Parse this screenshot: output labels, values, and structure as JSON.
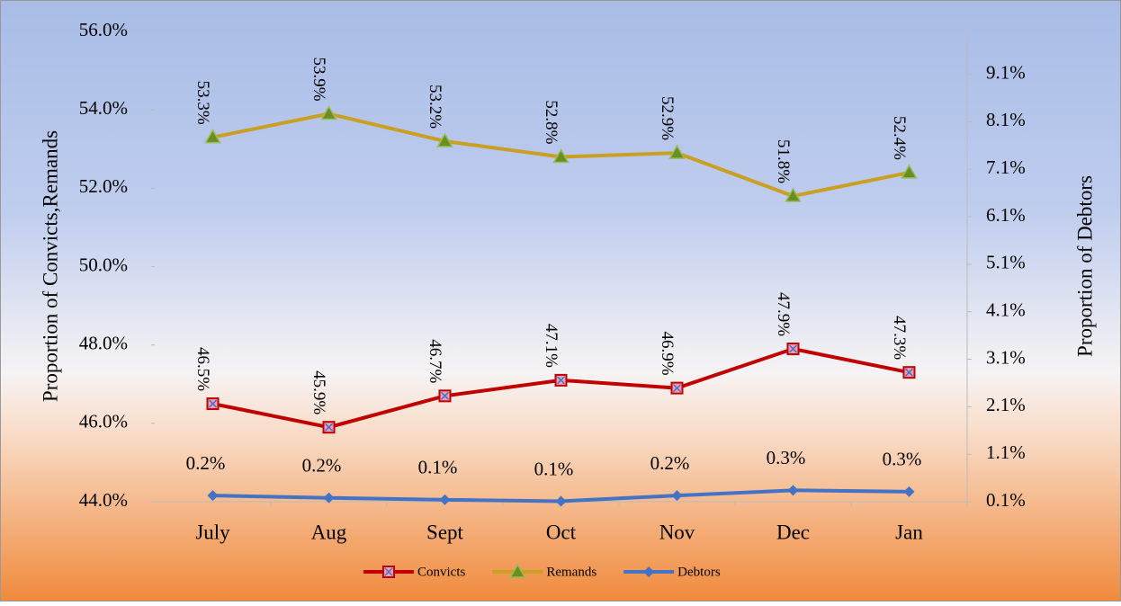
{
  "chart_data": {
    "type": "line",
    "categories": [
      "July",
      "Aug",
      "Sept",
      "Oct",
      "Nov",
      "Dec",
      "Jan"
    ],
    "ylabel": "Proportion of Convicts,Remands",
    "y2label": "Proportion of Debtors",
    "ylim": [
      44,
      56
    ],
    "yticks": [
      {
        "value": 44,
        "label": "44.0%"
      },
      {
        "value": 46,
        "label": "46.0%"
      },
      {
        "value": 48,
        "label": "48.0%"
      },
      {
        "value": 50,
        "label": "50.0%"
      },
      {
        "value": 52,
        "label": "52.0%"
      },
      {
        "value": 54,
        "label": "54.0%"
      },
      {
        "value": 56,
        "label": "56.0%"
      }
    ],
    "y2lim": [
      0.1,
      10.0
    ],
    "y2ticks": [
      {
        "value": 0.1,
        "label": "0.1%"
      },
      {
        "value": 1.1,
        "label": "1.1%"
      },
      {
        "value": 2.1,
        "label": "2.1%"
      },
      {
        "value": 3.1,
        "label": "3.1%"
      },
      {
        "value": 4.1,
        "label": "4.1%"
      },
      {
        "value": 5.1,
        "label": "5.1%"
      },
      {
        "value": 6.1,
        "label": "6.1%"
      },
      {
        "value": 7.1,
        "label": "7.1%"
      },
      {
        "value": 8.1,
        "label": "8.1%"
      },
      {
        "value": 9.1,
        "label": "9.1%"
      }
    ],
    "legend": "bottom",
    "series": [
      {
        "name": "Convicts",
        "color": "#c00000",
        "marker": "square-x",
        "values": [
          46.5,
          45.9,
          46.7,
          47.1,
          46.9,
          47.9,
          47.3
        ],
        "value_labels": [
          "46.5%",
          "45.9%",
          "46.7%",
          "47.1%",
          "46.9%",
          "47.9%",
          "47.3%"
        ]
      },
      {
        "name": "Remands",
        "color": "#c9a021",
        "marker": "triangle",
        "values": [
          53.3,
          53.9,
          53.2,
          52.8,
          52.9,
          51.8,
          52.4
        ],
        "value_labels": [
          "53.3%",
          "53.9%",
          "53.2%",
          "52.8%",
          "52.9%",
          "51.8%",
          "52.4%"
        ]
      },
      {
        "name": "Debtors",
        "color": "#4472c4",
        "marker": "diamond",
        "axis": "y2",
        "values": [
          0.23,
          0.18,
          0.14,
          0.11,
          0.23,
          0.34,
          0.31
        ],
        "value_labels": [
          "0.2%",
          "0.2%",
          "0.1%",
          "0.1%",
          "0.2%",
          "0.3%",
          "0.3%"
        ]
      }
    ]
  }
}
